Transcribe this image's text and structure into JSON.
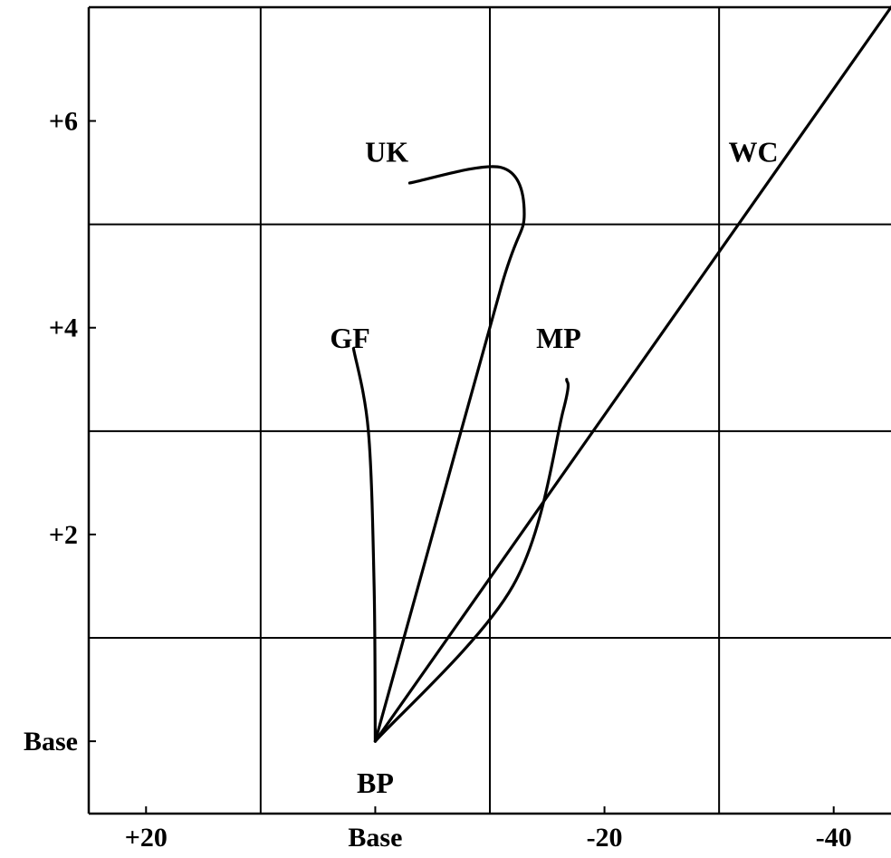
{
  "chart_data": {
    "type": "line",
    "title": "",
    "xlabel": "",
    "ylabel": "",
    "xlim": [
      25,
      -45
    ],
    "ylim": [
      -0.7,
      7.1
    ],
    "x_ticks": [
      {
        "value": 20,
        "label": "+20"
      },
      {
        "value": 0,
        "label": "Base"
      },
      {
        "value": -20,
        "label": "-20"
      },
      {
        "value": -40,
        "label": "-40"
      }
    ],
    "y_ticks": [
      {
        "value": 6,
        "label": "+6"
      },
      {
        "value": 4,
        "label": "+4"
      },
      {
        "value": 2,
        "label": "+2"
      },
      {
        "value": 0,
        "label": "Base"
      }
    ],
    "grid": true,
    "series": [
      {
        "name": "UK",
        "points": [
          [
            0,
            0
          ],
          [
            -4.5,
            1.8
          ],
          [
            -11,
            4.4
          ],
          [
            -13,
            5.1
          ],
          [
            -11,
            5.55
          ],
          [
            -3,
            5.4
          ]
        ]
      },
      {
        "name": "GF",
        "points": [
          [
            0,
            0
          ],
          [
            0.1,
            1.5
          ],
          [
            0.6,
            3.0
          ],
          [
            1.9,
            3.8
          ]
        ]
      },
      {
        "name": "MP",
        "points": [
          [
            0,
            0
          ],
          [
            -12,
            1.5
          ],
          [
            -16.4,
            3.2
          ],
          [
            -16.7,
            3.5
          ]
        ]
      },
      {
        "name": "WC",
        "points": [
          [
            0,
            0
          ],
          [
            -45,
            7.1
          ]
        ]
      }
    ],
    "annotations": [
      {
        "text": "UK",
        "x": -1,
        "y": 5.7
      },
      {
        "text": "GF",
        "x": 2.2,
        "y": 3.9
      },
      {
        "text": "MP",
        "x": -16,
        "y": 3.9
      },
      {
        "text": "WC",
        "x": -33,
        "y": 5.7
      },
      {
        "text": "BP",
        "x": 0,
        "y": -0.4
      }
    ]
  }
}
